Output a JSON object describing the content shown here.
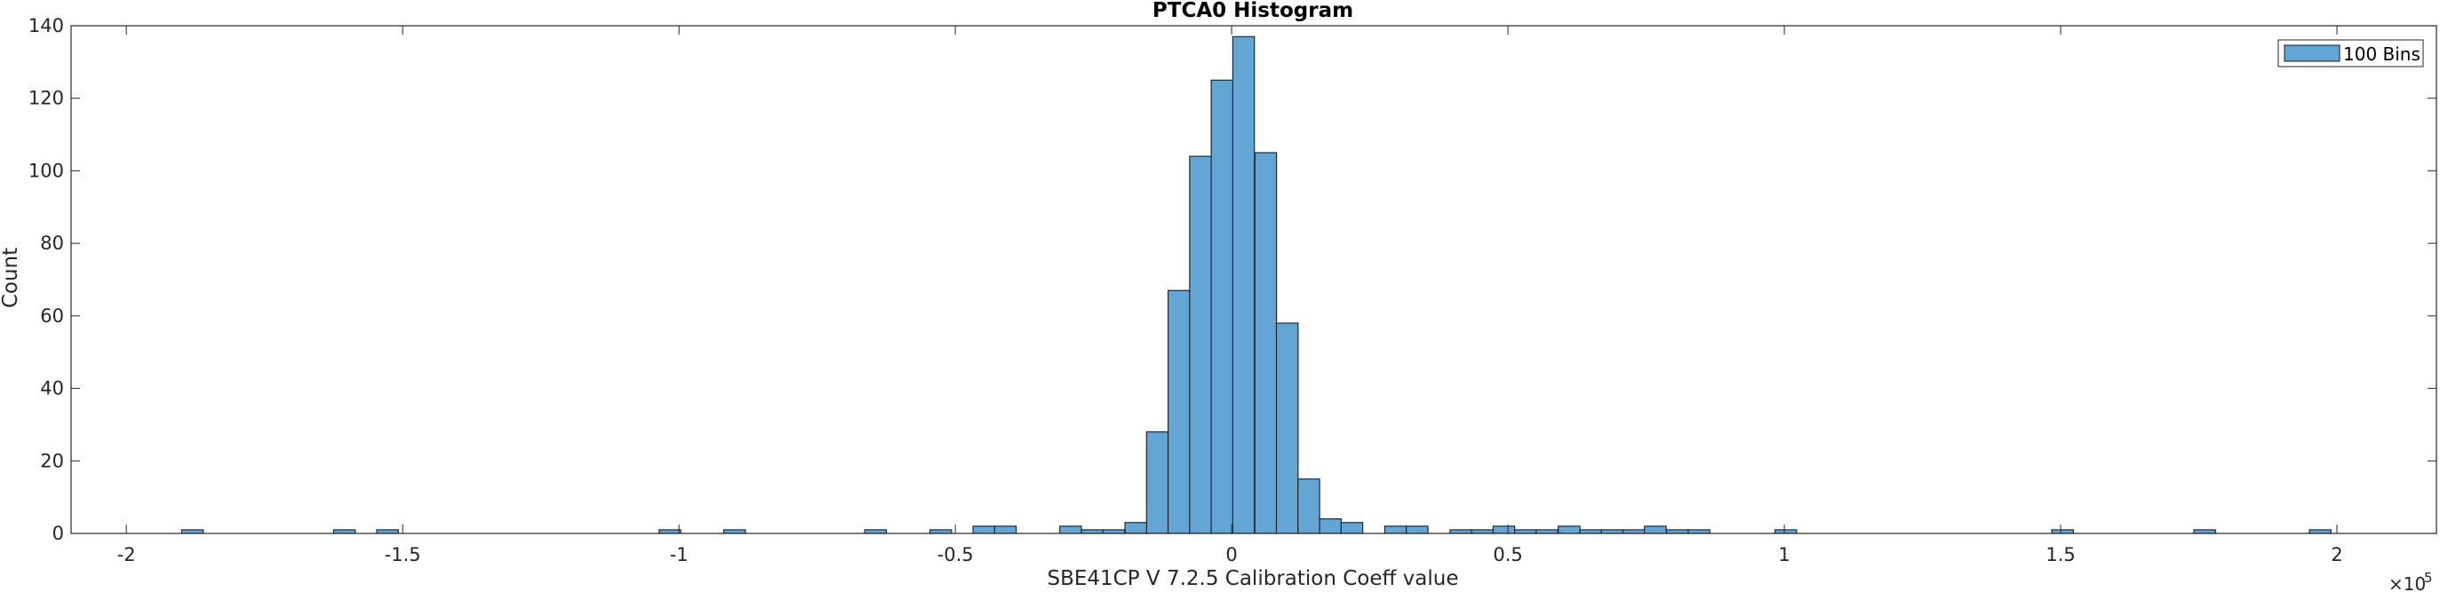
{
  "chart_data": {
    "type": "bar",
    "title": "PTCA0 Histogram",
    "xlabel": "SBE41CP V 7.2.5 Calibration Coeff value",
    "ylabel": "Count",
    "x_exponent_base": "×10",
    "x_exponent_power": "5",
    "xlim": [
      -2.1,
      2.18
    ],
    "ylim": [
      0,
      140
    ],
    "x_ticks": [
      -2,
      -1.5,
      -1,
      -0.5,
      0,
      0.5,
      1,
      1.5,
      2
    ],
    "x_tick_labels": [
      "-2",
      "-1.5",
      "-1",
      "-0.5",
      "0",
      "0.5",
      "1",
      "1.5",
      "2"
    ],
    "y_ticks": [
      0,
      20,
      40,
      60,
      80,
      100,
      120,
      140
    ],
    "y_tick_labels": [
      "0",
      "20",
      "40",
      "60",
      "80",
      "100",
      "120",
      "140"
    ],
    "legend": {
      "label": "100 Bins",
      "location": "top-right"
    },
    "grid": false,
    "series": [
      {
        "name": "100 Bins",
        "color": "#63A6D6",
        "edge_color": "#1a1a1a",
        "bin_width": 0.0392
      }
    ],
    "bins": [
      {
        "left": -1.9,
        "count": 1
      },
      {
        "left": -1.625,
        "count": 1
      },
      {
        "left": -1.547,
        "count": 1
      },
      {
        "left": -1.036,
        "count": 1
      },
      {
        "left": -0.919,
        "count": 1
      },
      {
        "left": -0.664,
        "count": 1
      },
      {
        "left": -0.546,
        "count": 1
      },
      {
        "left": -0.468,
        "count": 2
      },
      {
        "left": -0.429,
        "count": 2
      },
      {
        "left": -0.311,
        "count": 2
      },
      {
        "left": -0.272,
        "count": 1
      },
      {
        "left": -0.233,
        "count": 1
      },
      {
        "left": -0.193,
        "count": 3
      },
      {
        "left": -0.154,
        "count": 28
      },
      {
        "left": -0.115,
        "count": 67
      },
      {
        "left": -0.076,
        "count": 104
      },
      {
        "left": -0.037,
        "count": 125
      },
      {
        "left": 0.002,
        "count": 137
      },
      {
        "left": 0.042,
        "count": 105
      },
      {
        "left": 0.081,
        "count": 58
      },
      {
        "left": 0.12,
        "count": 15
      },
      {
        "left": 0.159,
        "count": 4
      },
      {
        "left": 0.198,
        "count": 3
      },
      {
        "left": 0.277,
        "count": 2
      },
      {
        "left": 0.316,
        "count": 2
      },
      {
        "left": 0.395,
        "count": 1
      },
      {
        "left": 0.434,
        "count": 1
      },
      {
        "left": 0.473,
        "count": 2
      },
      {
        "left": 0.512,
        "count": 1
      },
      {
        "left": 0.551,
        "count": 1
      },
      {
        "left": 0.591,
        "count": 2
      },
      {
        "left": 0.63,
        "count": 1
      },
      {
        "left": 0.669,
        "count": 1
      },
      {
        "left": 0.708,
        "count": 1
      },
      {
        "left": 0.747,
        "count": 2
      },
      {
        "left": 0.787,
        "count": 1
      },
      {
        "left": 0.826,
        "count": 1
      },
      {
        "left": 0.983,
        "count": 1
      },
      {
        "left": 1.484,
        "count": 1
      },
      {
        "left": 1.741,
        "count": 1
      },
      {
        "left": 1.95,
        "count": 1
      }
    ]
  }
}
